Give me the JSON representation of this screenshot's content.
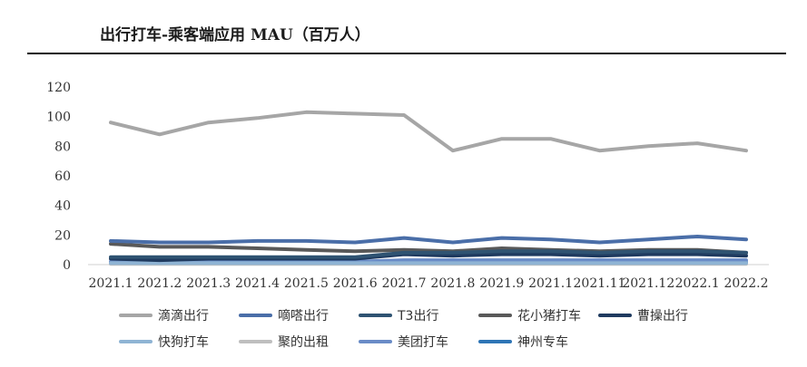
{
  "title": "出行打车-乘客端应用 MAU（百万人）",
  "chart_data": {
    "type": "line",
    "title": "出行打车-乘客端应用 MAU（百万人）",
    "xlabel": "",
    "ylabel": "",
    "ylim": [
      0,
      120
    ],
    "yticks": [
      0,
      20,
      40,
      60,
      80,
      100,
      120
    ],
    "grid": false,
    "legend_position": "bottom",
    "categories": [
      "2021.1",
      "2021.2",
      "2021.3",
      "2021.4",
      "2021.5",
      "2021.6",
      "2021.7",
      "2021.8",
      "2021.9",
      "2021.1",
      "2021.11",
      "2021.12",
      "2022.1",
      "2022.2"
    ],
    "series": [
      {
        "name": "滴滴出行",
        "color": "#a6a6a6",
        "values": [
          96,
          88,
          96,
          99,
          103,
          102,
          101,
          77,
          85,
          85,
          77,
          80,
          82,
          77
        ]
      },
      {
        "name": "嘀嗒出行",
        "color": "#4a6ea8",
        "values": [
          16,
          15,
          15,
          16,
          16,
          15,
          18,
          15,
          18,
          17,
          15,
          17,
          19,
          17
        ]
      },
      {
        "name": "T3出行",
        "color": "#2f5372",
        "values": [
          5,
          5,
          5,
          5,
          5,
          5,
          8,
          8,
          9,
          9,
          8,
          9,
          9,
          8
        ]
      },
      {
        "name": "花小猪打车",
        "color": "#595959",
        "values": [
          14,
          12,
          12,
          11,
          10,
          9,
          10,
          9,
          11,
          10,
          9,
          10,
          10,
          8
        ]
      },
      {
        "name": "曹操出行",
        "color": "#1f3a5f",
        "values": [
          4,
          3,
          4,
          4,
          4,
          4,
          7,
          6,
          7,
          7,
          6,
          7,
          7,
          6
        ]
      },
      {
        "name": "快狗打车",
        "color": "#8fb4d4",
        "values": [
          1,
          1,
          1,
          1,
          1,
          1,
          1,
          1,
          1,
          1,
          1,
          1,
          1,
          1
        ]
      },
      {
        "name": "聚的出租",
        "color": "#bfbfbf",
        "values": [
          0.5,
          0.5,
          0.5,
          0.5,
          0.5,
          0.5,
          0.5,
          0.5,
          0.5,
          0.5,
          0.5,
          0.5,
          0.5,
          0.5
        ]
      },
      {
        "name": "美团打车",
        "color": "#6a8cc7",
        "values": [
          2,
          2,
          2,
          2,
          2,
          2,
          3,
          3,
          3,
          3,
          3,
          3,
          3,
          3
        ]
      },
      {
        "name": "神州专车",
        "color": "#2e75b6",
        "values": [
          1,
          1,
          1,
          1,
          1,
          1,
          1.5,
          1.5,
          1.5,
          1.5,
          1.5,
          1.5,
          1.5,
          1.5
        ]
      }
    ]
  }
}
